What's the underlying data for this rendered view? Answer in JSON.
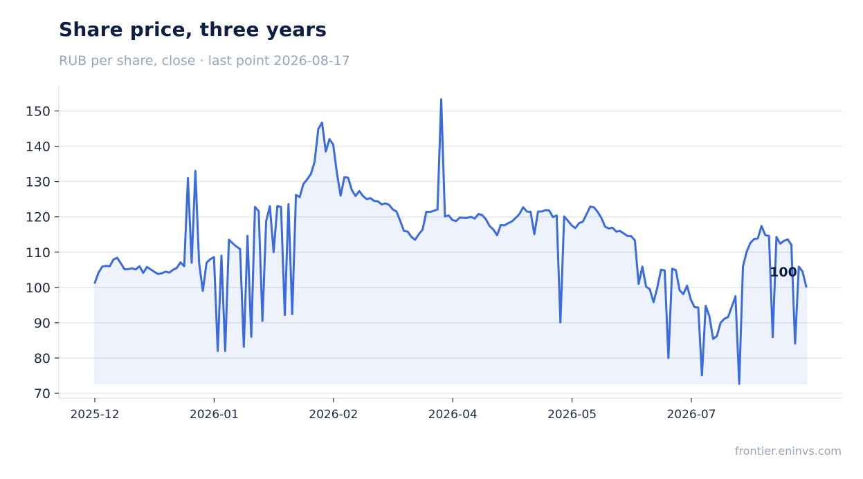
{
  "chart_data": {
    "type": "area",
    "title": "Share price, three years",
    "subtitle": "RUB per share, close · last point 2026-08-17",
    "source": "frontier.eninvs.com",
    "ylim": [
      69,
      157
    ],
    "yticks": [
      70,
      80,
      90,
      100,
      110,
      120,
      130,
      140,
      150
    ],
    "x_tick_labels": [
      "2025-12",
      "2026-01",
      "2026-02",
      "2026-04",
      "2026-05",
      "2026-07"
    ],
    "grid": "horizontal",
    "last_value_label": "100",
    "series": [
      {
        "color": "#3b6be0",
        "values": [
          101.3,
          104.2,
          105.9,
          106.1,
          106.0,
          107.9,
          108.4,
          106.8,
          105.1,
          105.2,
          105.4,
          105.1,
          106.0,
          104.1,
          105.8,
          105.1,
          104.4,
          103.8,
          104.0,
          104.5,
          104.2,
          105.0,
          105.5,
          107.1,
          106.0,
          131.0,
          107.0,
          133.0,
          107.0,
          99.0,
          107.0,
          108.0,
          108.6,
          82.0,
          109.0,
          82.0,
          113.5,
          112.5,
          111.6,
          110.9,
          83.2,
          114.6,
          86.0,
          122.8,
          121.6,
          90.5,
          118.8,
          123.0,
          110.0,
          123.0,
          122.8,
          92.2,
          123.6,
          92.4,
          126.2,
          125.6,
          129.3,
          130.6,
          132.1,
          135.6,
          144.9,
          146.7,
          138.5,
          142.0,
          140.5,
          132.4,
          126.0,
          131.2,
          131.1,
          127.6,
          125.9,
          127.3,
          125.9,
          125.0,
          125.3,
          124.5,
          124.4,
          123.5,
          123.8,
          123.4,
          122.1,
          121.5,
          118.8,
          116.0,
          115.8,
          114.3,
          113.5,
          115.1,
          116.4,
          121.4,
          121.4,
          121.7,
          122.1,
          153.3,
          120.1,
          120.4,
          119.1,
          118.8,
          119.8,
          119.7,
          119.7,
          120.0,
          119.5,
          120.8,
          120.5,
          119.3,
          117.4,
          116.4,
          114.8,
          117.7,
          117.6,
          118.2,
          118.7,
          119.7,
          120.8,
          122.7,
          121.5,
          121.4,
          115.1,
          121.5,
          121.5,
          121.9,
          121.8,
          119.9,
          120.4,
          90.1,
          120.1,
          118.9,
          117.6,
          116.8,
          118.2,
          118.6,
          120.7,
          122.9,
          122.7,
          121.4,
          119.7,
          117.2,
          116.7,
          116.9,
          115.8,
          116.0,
          115.3,
          114.6,
          114.5,
          113.3,
          101.0,
          105.9,
          100.2,
          99.5,
          95.8,
          99.9,
          105.0,
          104.8,
          80.0,
          105.3,
          104.9,
          99.2,
          98.1,
          100.5,
          96.6,
          94.4,
          94.3,
          75.1,
          94.8,
          91.8,
          85.4,
          86.2,
          90.0,
          91.1,
          91.6,
          94.5,
          97.5,
          72.7,
          105.9,
          110.1,
          112.6,
          113.7,
          113.9,
          117.4,
          114.8,
          114.6,
          85.9,
          114.3,
          112.4,
          113.2,
          113.6,
          112.1,
          84.1,
          105.9,
          104.5,
          100.2
        ]
      }
    ]
  }
}
